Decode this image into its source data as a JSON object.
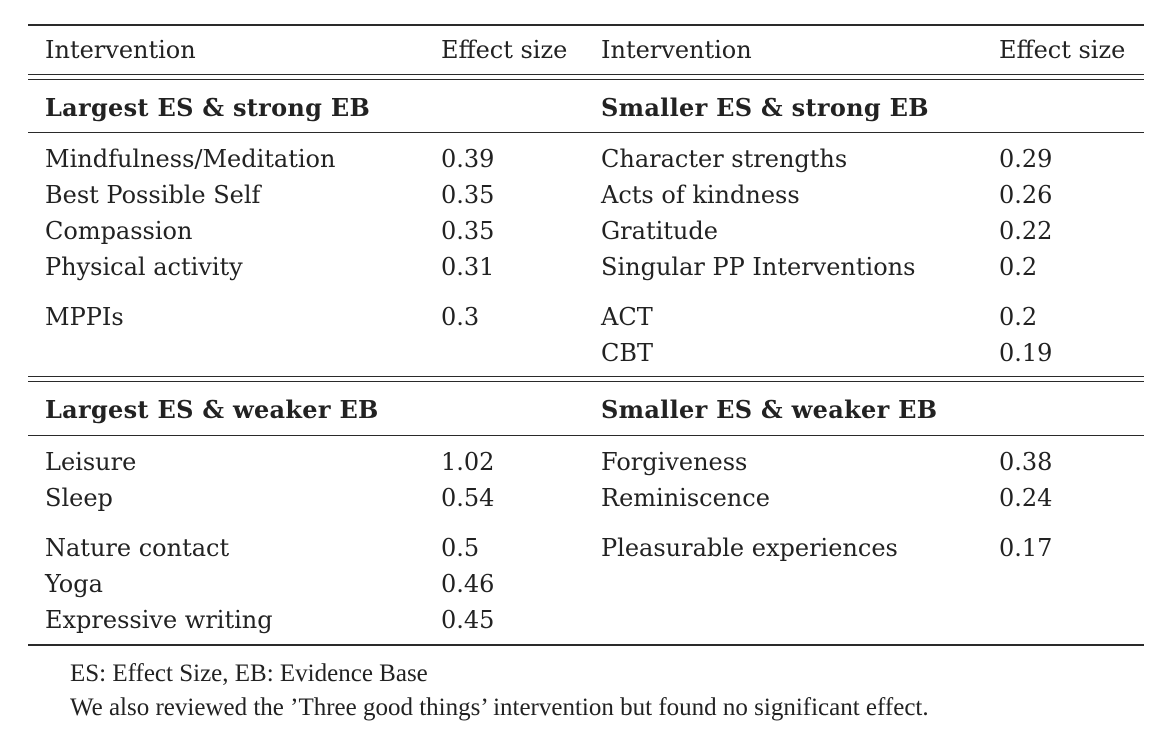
{
  "header": {
    "col1": "Intervention",
    "col2": "Effect size",
    "col3": "Intervention",
    "col4": "Effect size"
  },
  "sections": [
    {
      "left_title": "Largest ES & strong EB",
      "right_title": "Smaller ES & strong EB",
      "rows": [
        {
          "li": "Mindfulness/Meditation",
          "le": "0.39",
          "ri": "Character strengths",
          "re": "0.29"
        },
        {
          "li": "Best Possible Self",
          "le": "0.35",
          "ri": "Acts of kindness",
          "re": "0.26"
        },
        {
          "li": "Compassion",
          "le": "0.35",
          "ri": "Gratitude",
          "re": "0.22"
        },
        {
          "li": "Physical activity",
          "le": "0.31",
          "ri": "Singular PP Interventions",
          "re": "0.2"
        },
        {
          "li": "MPPIs",
          "le": "0.3",
          "ri": "ACT",
          "re": "0.2"
        },
        {
          "li": "",
          "le": "",
          "ri": "CBT",
          "re": "0.19"
        }
      ]
    },
    {
      "left_title": "Largest ES & weaker EB",
      "right_title": "Smaller ES & weaker EB",
      "rows": [
        {
          "li": "Leisure",
          "le": "1.02",
          "ri": "Forgiveness",
          "re": "0.38"
        },
        {
          "li": "Sleep",
          "le": "0.54",
          "ri": "Reminiscence",
          "re": "0.24"
        },
        {
          "li": "Nature contact",
          "le": "0.5",
          "ri": "Pleasurable experiences",
          "re": "0.17"
        },
        {
          "li": "Yoga",
          "le": "0.46",
          "ri": "",
          "re": ""
        },
        {
          "li": "Expressive writing",
          "le": "0.45",
          "ri": "",
          "re": ""
        }
      ]
    }
  ],
  "notes": [
    "ES: Effect Size, EB: Evidence Base",
    "We also reviewed the ’Three good things’ intervention but found no significant effect."
  ]
}
